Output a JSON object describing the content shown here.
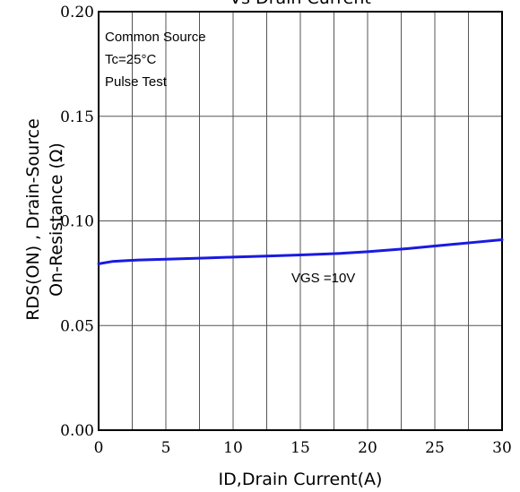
{
  "chart_data": {
    "type": "line",
    "title": "Vs Drain Current",
    "xlabel": "ID,Drain Current(A)",
    "ylabel_lines": [
      "RDS(ON) , Drain-Source",
      "On-Resistance (Ω)"
    ],
    "xlim": [
      0,
      30
    ],
    "ylim": [
      0,
      0.2
    ],
    "x_ticks": [
      0,
      5,
      10,
      15,
      20,
      25,
      30
    ],
    "x_tick_labels": [
      "0",
      "5",
      "10",
      "15",
      "20",
      "25",
      "30"
    ],
    "y_ticks": [
      0,
      0.05,
      0.1,
      0.15,
      0.2
    ],
    "y_tick_labels": [
      "0.00",
      "0.05",
      "0.10",
      "0.15",
      "0.20"
    ],
    "x_grid": [
      2.5,
      5,
      7.5,
      10,
      12.5,
      15,
      17.5,
      20,
      22.5,
      25,
      27.5
    ],
    "y_grid": [
      0.05,
      0.1,
      0.15
    ],
    "annotations": [
      "Common Source",
      "Tc=25°C",
      "Pulse Test"
    ],
    "series_label": "VGS =10V",
    "series": [
      {
        "color": "#1a1ae0",
        "x": [
          0,
          1,
          2,
          3,
          5,
          8,
          10,
          13,
          15,
          18,
          20,
          23,
          25,
          28,
          30
        ],
        "y": [
          0.0795,
          0.0806,
          0.081,
          0.0813,
          0.0817,
          0.0823,
          0.0827,
          0.0833,
          0.0837,
          0.0845,
          0.0853,
          0.0868,
          0.088,
          0.0898,
          0.091
        ]
      }
    ]
  }
}
